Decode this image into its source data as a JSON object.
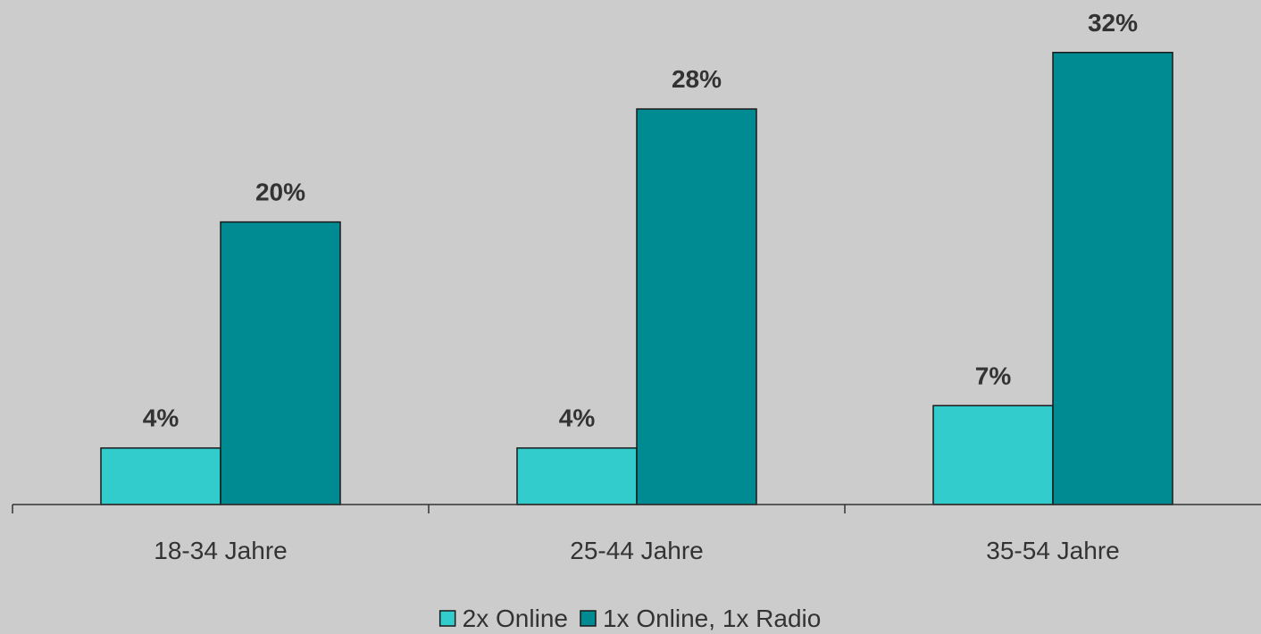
{
  "chart_data": {
    "type": "bar",
    "categories": [
      "18-34 Jahre",
      "25-44 Jahre",
      "35-54 Jahre"
    ],
    "series": [
      {
        "name": "2x Online",
        "values": [
          4,
          4,
          7
        ],
        "labels": [
          "4%",
          "4%",
          "7%"
        ],
        "color": "#33cccc"
      },
      {
        "name": "1x Online, 1x Radio",
        "values": [
          20,
          28,
          32
        ],
        "labels": [
          "20%",
          "28%",
          "32%"
        ],
        "color": "#008b93"
      }
    ],
    "title": "",
    "xlabel": "",
    "ylabel": "",
    "ylim": [
      0,
      36
    ],
    "grid": false,
    "legend_position": "bottom",
    "background": "#cccccc",
    "axis_color": "#333333",
    "bar_border": "#1a1a1a"
  }
}
